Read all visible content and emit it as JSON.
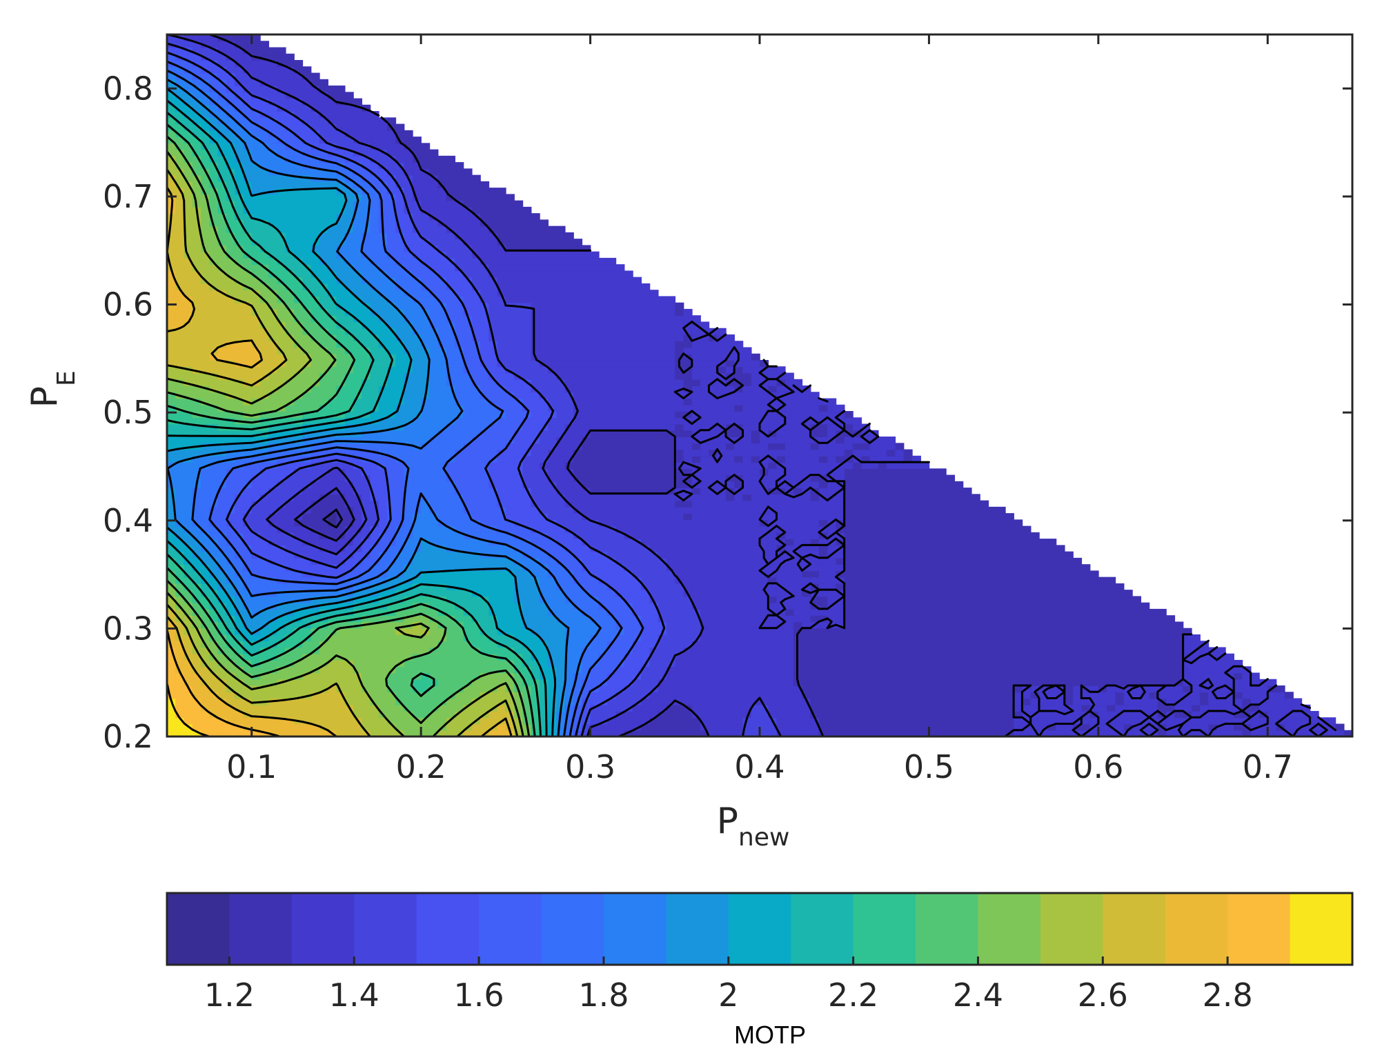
{
  "chart_data": {
    "type": "contourf",
    "title": "",
    "xlabel": {
      "base": "P",
      "sub": "new"
    },
    "ylabel": {
      "base": "P",
      "sub": "E"
    },
    "xlim": [
      0.05,
      0.75
    ],
    "ylim": [
      0.2,
      0.85
    ],
    "xticks": [
      0.1,
      0.2,
      0.3,
      0.4,
      0.5,
      0.6,
      0.7
    ],
    "yticks": [
      0.2,
      0.3,
      0.4,
      0.5,
      0.6,
      0.7,
      0.8
    ],
    "xtick_labels": [
      "0.1",
      "0.2",
      "0.3",
      "0.4",
      "0.5",
      "0.6",
      "0.7"
    ],
    "ytick_labels": [
      "0.2",
      "0.3",
      "0.4",
      "0.5",
      "0.6",
      "0.7",
      "0.8"
    ],
    "domain": "valid region P_new + P_E <= 0.95 (upper-right triangle left blank)",
    "contour_levels": [
      1.1,
      1.2,
      1.3,
      1.4,
      1.5,
      1.6,
      1.7,
      1.8,
      1.9,
      2.0,
      2.1,
      2.2,
      2.3,
      2.4,
      2.5,
      2.6,
      2.7,
      2.8,
      2.9,
      3.0
    ],
    "grid": false,
    "colormap": "parula",
    "colorbar": {
      "orientation": "horizontal",
      "position": "bottom",
      "label": "MOTP",
      "clim": [
        1.1,
        3.0
      ],
      "ticks": [
        1.2,
        1.4,
        1.6,
        1.8,
        2.0,
        2.2,
        2.4,
        2.6,
        2.8
      ],
      "tick_labels": [
        "1.2",
        "1.4",
        "1.6",
        "1.8",
        "2",
        "2.2",
        "2.4",
        "2.6",
        "2.8"
      ]
    },
    "x": [
      0.05,
      0.1,
      0.15,
      0.2,
      0.25,
      0.3,
      0.35,
      0.4,
      0.45,
      0.5,
      0.55,
      0.6,
      0.65,
      0.7,
      0.75
    ],
    "y": [
      0.2,
      0.25,
      0.3,
      0.35,
      0.4,
      0.45,
      0.5,
      0.55,
      0.6,
      0.65,
      0.7,
      0.75,
      0.8,
      0.85
    ],
    "z": [
      [
        2.95,
        2.85,
        2.7,
        2.45,
        2.8,
        1.35,
        1.2,
        1.45,
        1.25,
        1.3,
        1.3,
        1.3,
        1.3,
        1.3,
        1.3
      ],
      [
        2.9,
        2.45,
        2.6,
        2.25,
        2.5,
        1.65,
        1.35,
        1.38,
        1.2,
        1.25,
        1.3,
        1.3,
        1.3,
        1.3,
        null
      ],
      [
        2.8,
        1.95,
        2.4,
        2.55,
        2.05,
        1.85,
        1.45,
        1.3,
        1.3,
        1.25,
        1.28,
        1.25,
        1.3,
        null,
        null
      ],
      [
        2.35,
        1.7,
        1.55,
        2.0,
        2.05,
        1.6,
        1.4,
        1.3,
        1.3,
        1.25,
        1.2,
        1.28,
        null,
        null,
        null
      ],
      [
        1.95,
        1.45,
        1.15,
        1.85,
        1.6,
        1.4,
        1.3,
        1.3,
        1.3,
        1.25,
        1.25,
        null,
        null,
        null,
        null
      ],
      [
        1.9,
        1.65,
        1.4,
        1.75,
        1.55,
        1.2,
        1.3,
        1.3,
        1.3,
        1.3,
        null,
        null,
        null,
        null,
        null
      ],
      [
        2.25,
        2.45,
        2.25,
        1.9,
        1.7,
        1.35,
        1.3,
        1.3,
        1.3,
        null,
        null,
        null,
        null,
        null,
        null
      ],
      [
        2.65,
        2.75,
        2.4,
        1.95,
        1.45,
        1.3,
        1.3,
        1.3,
        null,
        null,
        null,
        null,
        null,
        null,
        null
      ],
      [
        2.75,
        2.6,
        2.1,
        1.8,
        1.4,
        1.4,
        1.3,
        null,
        null,
        null,
        null,
        null,
        null,
        null,
        null
      ],
      [
        2.7,
        2.25,
        1.9,
        1.55,
        1.3,
        1.3,
        null,
        null,
        null,
        null,
        null,
        null,
        null,
        null,
        null
      ],
      [
        2.75,
        2.0,
        2.1,
        1.35,
        1.2,
        null,
        null,
        null,
        null,
        null,
        null,
        null,
        null,
        null,
        null
      ],
      [
        2.45,
        1.85,
        1.45,
        1.25,
        null,
        null,
        null,
        null,
        null,
        null,
        null,
        null,
        null,
        null,
        null
      ],
      [
        2.0,
        1.45,
        1.25,
        null,
        null,
        null,
        null,
        null,
        null,
        null,
        null,
        null,
        null,
        null,
        null
      ],
      [
        1.4,
        1.2,
        null,
        null,
        null,
        null,
        null,
        null,
        null,
        null,
        null,
        null,
        null,
        null,
        null
      ]
    ]
  }
}
